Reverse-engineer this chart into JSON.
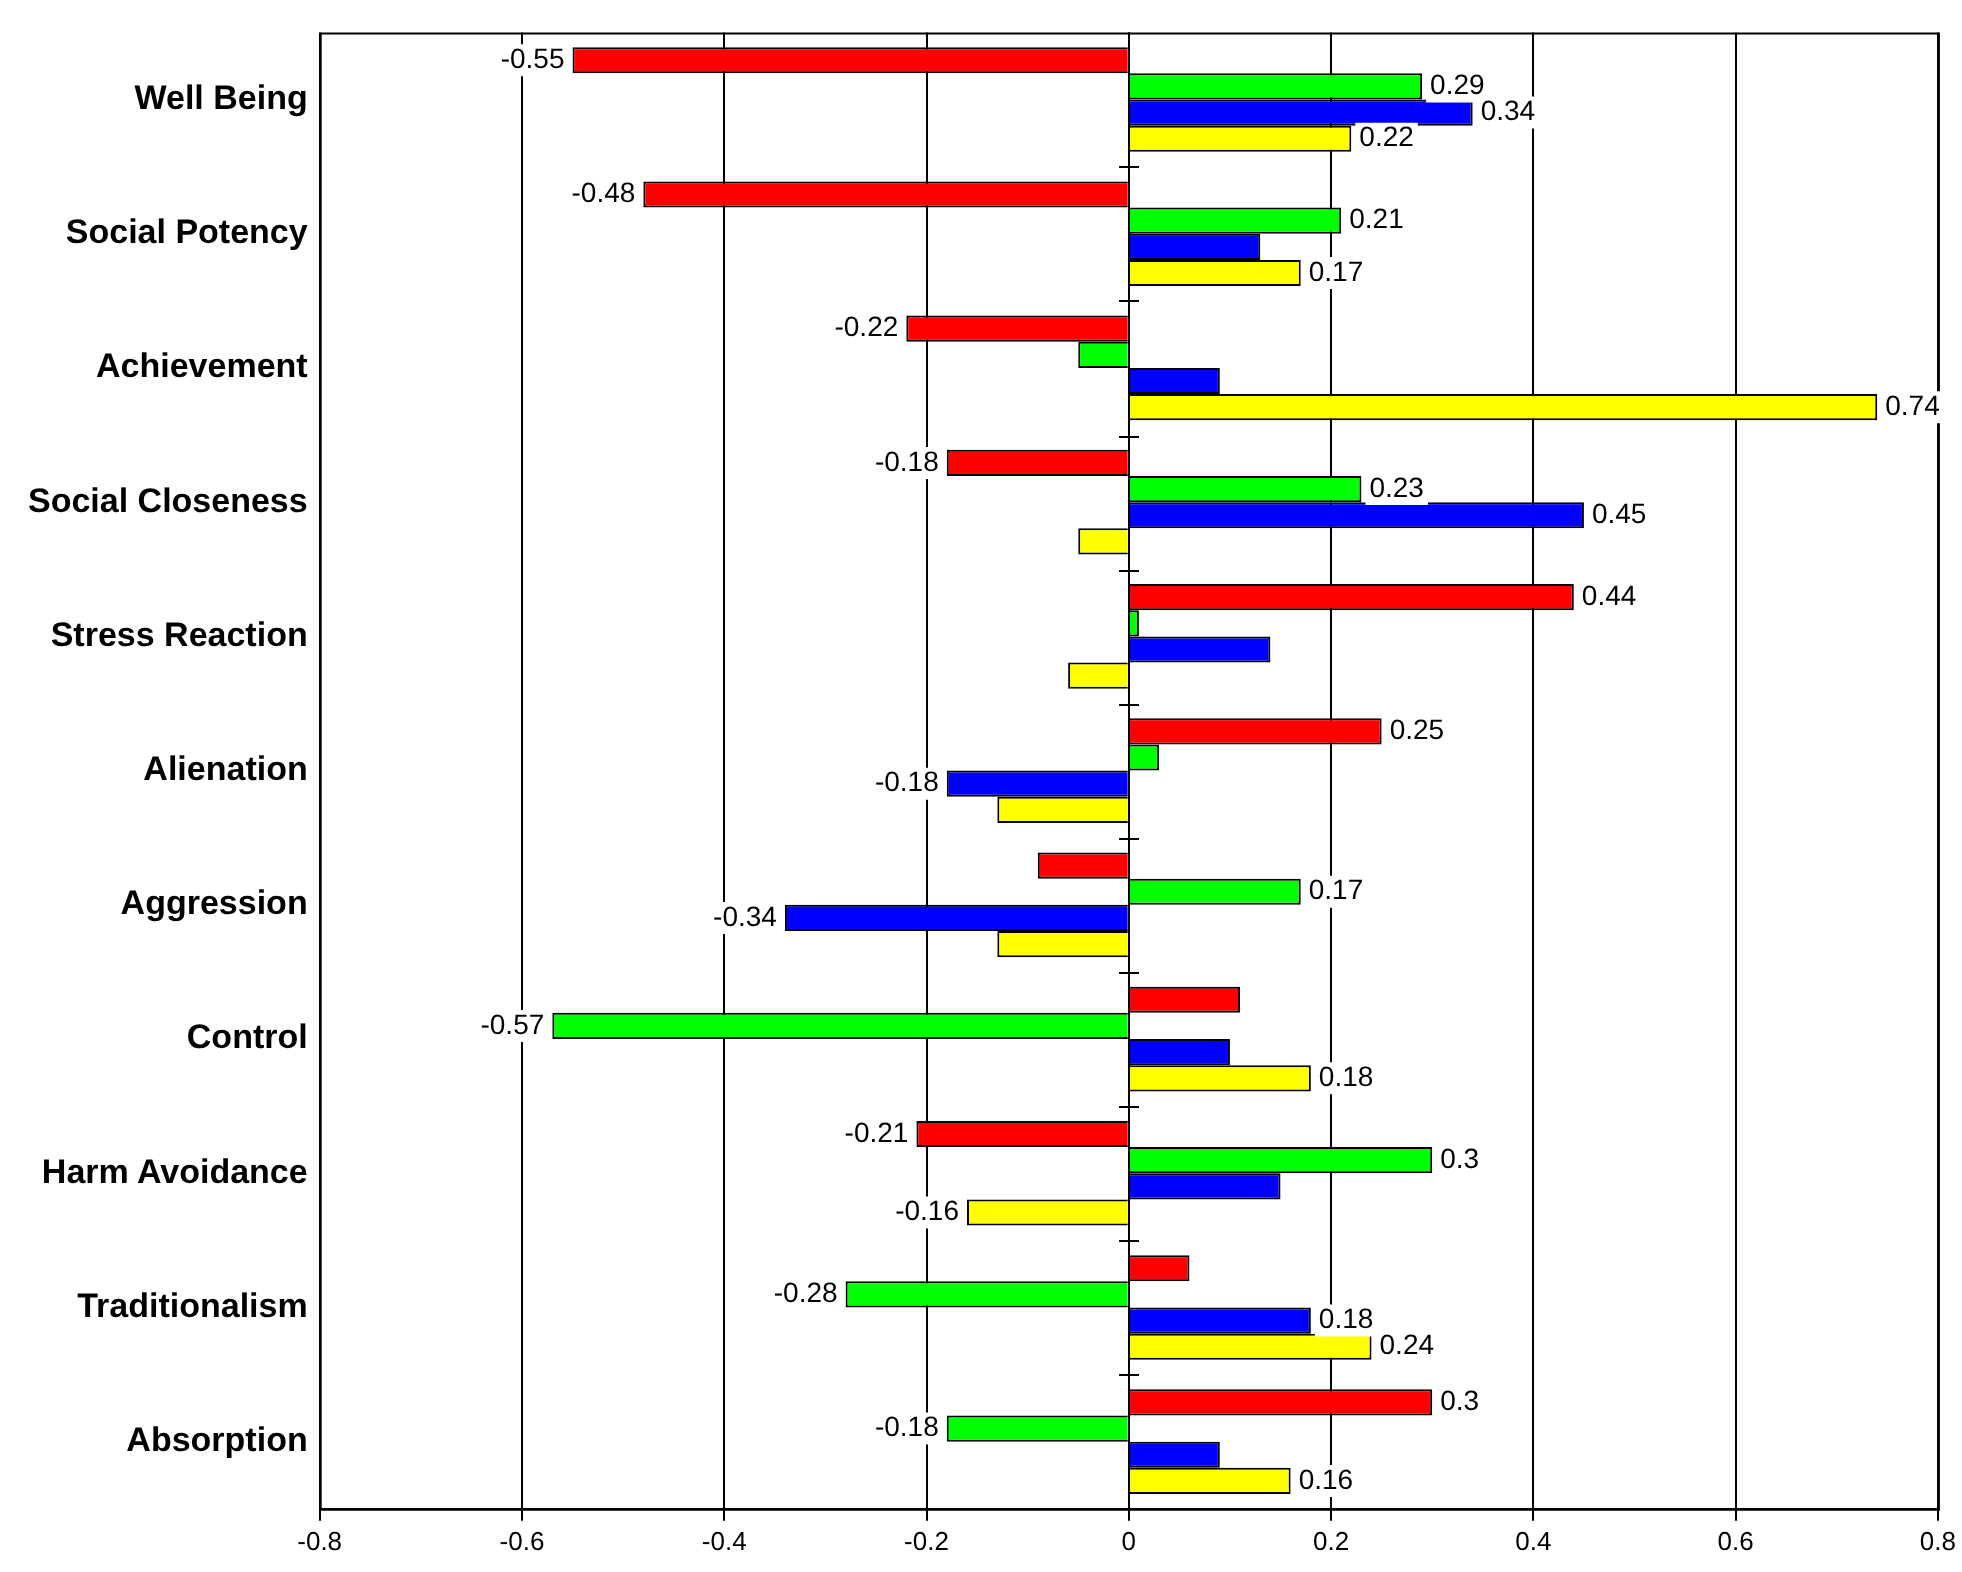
{
  "chart_data": {
    "type": "bar",
    "orientation": "horizontal",
    "categories": [
      "Well Being",
      "Social Potency",
      "Achievement",
      "Social Closeness",
      "Stress Reaction",
      "Alienation",
      "Aggression",
      "Control",
      "Harm Avoidance",
      "Traditionalism",
      "Absorption"
    ],
    "series": [
      {
        "color": "#ff0000",
        "values": [
          -0.55,
          -0.48,
          -0.22,
          -0.18,
          0.44,
          0.25,
          -0.09,
          0.11,
          -0.21,
          0.06,
          0.3
        ],
        "value_labels": [
          "-0.55",
          "-0.48",
          "-0.22",
          "-0.18",
          "0.44",
          "0.25",
          null,
          null,
          "-0.21",
          null,
          "0.3"
        ]
      },
      {
        "color": "#00ff00",
        "values": [
          0.29,
          0.21,
          -0.05,
          0.23,
          0.01,
          0.03,
          0.17,
          -0.57,
          0.3,
          -0.28,
          -0.18
        ],
        "value_labels": [
          "0.29",
          "0.21",
          null,
          "0.23",
          null,
          null,
          "0.17",
          "-0.57",
          "0.3",
          "-0.28",
          "-0.18"
        ]
      },
      {
        "color": "#0000ff",
        "values": [
          0.34,
          0.13,
          0.09,
          0.45,
          0.14,
          -0.18,
          -0.34,
          0.1,
          0.15,
          0.18,
          0.09
        ],
        "value_labels": [
          "0.34",
          null,
          null,
          "0.45",
          null,
          "-0.18",
          "-0.34",
          null,
          null,
          "0.18",
          null
        ]
      },
      {
        "color": "#ffff00",
        "values": [
          0.22,
          0.17,
          0.74,
          -0.05,
          -0.06,
          -0.13,
          -0.13,
          0.18,
          -0.16,
          0.24,
          0.16
        ],
        "value_labels": [
          "0.22",
          "0.17",
          "0.74",
          null,
          null,
          null,
          null,
          "0.18",
          "-0.16",
          "0.24",
          "0.16"
        ]
      }
    ],
    "xlim": [
      -0.8,
      0.8
    ],
    "xticks": [
      -0.8,
      -0.6,
      -0.4,
      -0.2,
      0,
      0.2,
      0.4,
      0.6,
      0.8
    ],
    "grid": "x",
    "legend": false
  }
}
